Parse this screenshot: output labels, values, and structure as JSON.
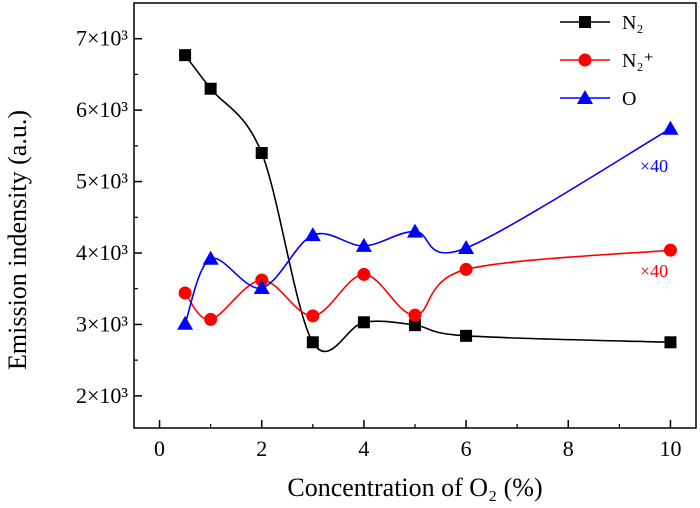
{
  "chart_data": {
    "type": "line",
    "xlabel": "Concentration of O₂ (%)",
    "ylabel": "Emission indensity (a.u.)",
    "xlim": [
      -0.5,
      10.5
    ],
    "ylim": [
      1550,
      7500
    ],
    "x_ticks": [
      0,
      2,
      4,
      6,
      8,
      10
    ],
    "x_tick_labels": [
      "0",
      "2",
      "4",
      "6",
      "8",
      "10"
    ],
    "y_ticks": [
      2000,
      3000,
      4000,
      5000,
      6000,
      7000
    ],
    "y_tick_labels": [
      "2×10³",
      "3×10³",
      "4×10³",
      "5×10³",
      "6×10³",
      "7×10³"
    ],
    "grid": false,
    "legend_position": "top-right",
    "series": [
      {
        "name": "N₂",
        "marker": "square",
        "color": "#000000",
        "x": [
          0.5,
          1,
          2,
          3,
          4,
          5,
          6,
          10
        ],
        "values": [
          6770,
          6300,
          5400,
          2750,
          3030,
          2990,
          2840,
          2750
        ]
      },
      {
        "name": "N₂⁺",
        "marker": "circle",
        "color": "#ff0000",
        "x": [
          0.5,
          1,
          2,
          3,
          4,
          5,
          6,
          10
        ],
        "values": [
          3440,
          3070,
          3620,
          3120,
          3700,
          3130,
          3770,
          4040
        ],
        "annotation": "×40"
      },
      {
        "name": "O",
        "marker": "triangle",
        "color": "#0000ff",
        "x": [
          0.5,
          1,
          2,
          3,
          4,
          5,
          6,
          10
        ],
        "values": [
          3010,
          3920,
          3510,
          4250,
          4100,
          4300,
          4070,
          5740
        ],
        "annotation": "×40"
      }
    ]
  }
}
